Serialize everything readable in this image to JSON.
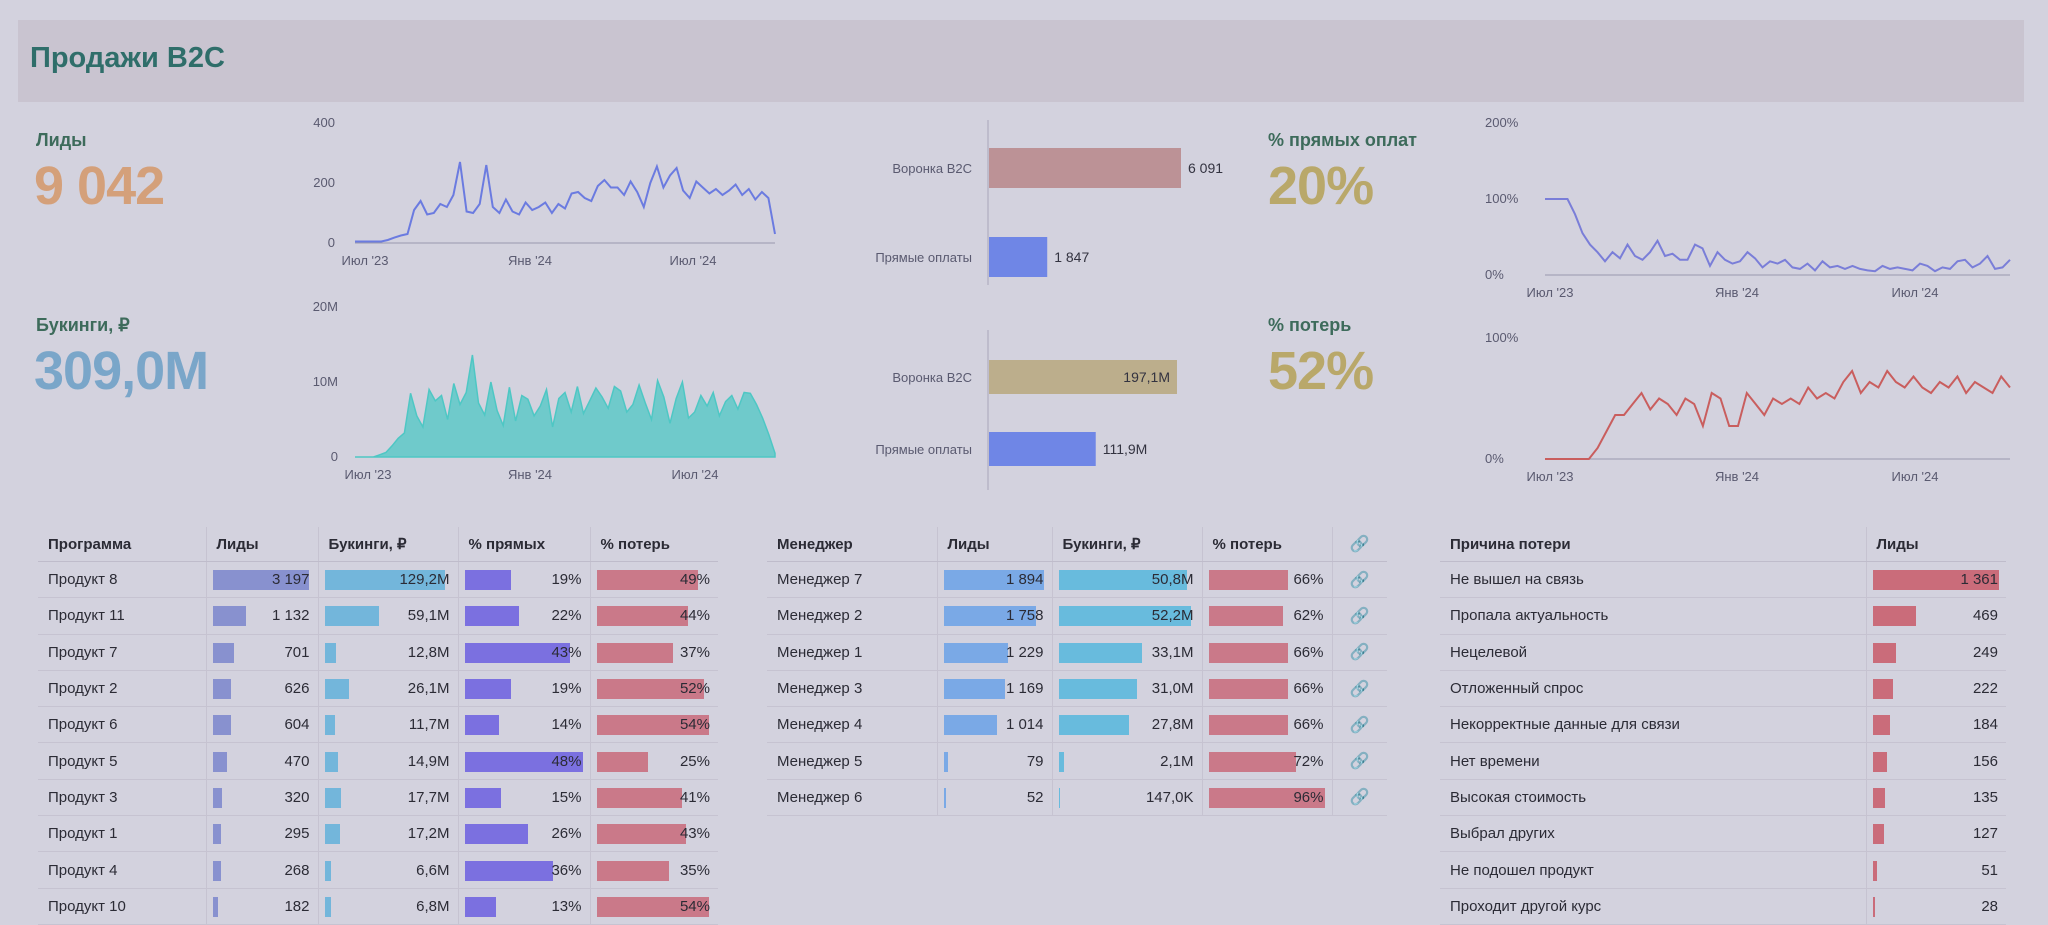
{
  "page": {
    "title": "Продажи B2C"
  },
  "kpis": {
    "leads": {
      "label": "Лиды",
      "value": "9 042"
    },
    "bookings": {
      "label": "Букинги, ₽",
      "value": "309,0M"
    },
    "direct_pct": {
      "label": "% прямых оплат",
      "value": "20%"
    },
    "loss_pct": {
      "label": "% потерь",
      "value": "52%"
    }
  },
  "chart_data": [
    {
      "type": "line",
      "x_ticks": [
        "Июл '23",
        "Янв '24",
        "Июл '24"
      ],
      "y_ticks": [
        "0",
        "200",
        "400"
      ],
      "ylim": [
        0,
        400
      ],
      "color": "#6b7be0",
      "series": [
        {
          "values": [
            5,
            5,
            5,
            5,
            5,
            10,
            18,
            25,
            30,
            110,
            140,
            95,
            100,
            130,
            120,
            160,
            270,
            105,
            100,
            130,
            260,
            120,
            100,
            145,
            105,
            95,
            135,
            110,
            120,
            135,
            100,
            130,
            115,
            165,
            170,
            150,
            140,
            190,
            210,
            185,
            185,
            160,
            205,
            170,
            120,
            200,
            255,
            185,
            225,
            250,
            175,
            150,
            205,
            185,
            165,
            180,
            160,
            175,
            195,
            160,
            180,
            145,
            170,
            150,
            30
          ]
        }
      ]
    },
    {
      "type": "area",
      "x_ticks": [
        "Июл '23",
        "Янв '24",
        "Июл '24"
      ],
      "y_ticks": [
        "0",
        "10M",
        "20M"
      ],
      "ylim": [
        0,
        20
      ],
      "color": "#4ec7c4",
      "series": [
        {
          "values": [
            0,
            0,
            0,
            0,
            0.3,
            0.6,
            1.5,
            2.5,
            3.2,
            8.5,
            5.5,
            4,
            9,
            7.5,
            8.2,
            5,
            9.8,
            7,
            8.6,
            13.6,
            7.2,
            5.6,
            10,
            6.2,
            4.2,
            9.3,
            4.8,
            8.2,
            7.7,
            5.5,
            6.8,
            9,
            4,
            7.8,
            8.6,
            6,
            9.4,
            5.8,
            7.5,
            9.2,
            8,
            6.5,
            9.4,
            8.8,
            6,
            7,
            9.6,
            7.2,
            5,
            10.2,
            8,
            4.5,
            7.8,
            10,
            5.2,
            6,
            8.2,
            6.8,
            8.6,
            5.5,
            7.4,
            8.2,
            6.4,
            8.6,
            8.5,
            7,
            5.2,
            3,
            0.5
          ]
        }
      ]
    },
    {
      "type": "bar",
      "orientation": "horizontal",
      "categories": [
        "Воронка B2C",
        "Прямые оплаты"
      ],
      "values": [
        6091,
        1847
      ],
      "labels": [
        "6 091",
        "1 847"
      ],
      "colors": [
        "#bc9296",
        "#6f86e6"
      ]
    },
    {
      "type": "bar",
      "orientation": "horizontal",
      "categories": [
        "Воронка B2C",
        "Прямые оплаты"
      ],
      "values": [
        197.1,
        111.9
      ],
      "labels": [
        "197,1M",
        "111,9M"
      ],
      "colors": [
        "#bcae8c",
        "#6f86e6"
      ]
    },
    {
      "type": "line",
      "x_ticks": [
        "Июл '23",
        "Янв '24",
        "Июл '24"
      ],
      "y_ticks": [
        "0%",
        "100%",
        "200%"
      ],
      "ylim": [
        0,
        200
      ],
      "color": "#7a7ed8",
      "series": [
        {
          "values": [
            100,
            100,
            100,
            100,
            80,
            55,
            40,
            30,
            18,
            30,
            22,
            40,
            25,
            20,
            30,
            45,
            25,
            28,
            20,
            20,
            40,
            35,
            12,
            30,
            20,
            15,
            18,
            30,
            22,
            10,
            18,
            15,
            20,
            10,
            8,
            15,
            6,
            18,
            10,
            12,
            8,
            12,
            8,
            6,
            5,
            12,
            8,
            10,
            8,
            6,
            15,
            12,
            5,
            10,
            8,
            18,
            20,
            10,
            15,
            25,
            8,
            10,
            20
          ]
        }
      ]
    },
    {
      "type": "line",
      "x_ticks": [
        "Июл '23",
        "Янв '24",
        "Июл '24"
      ],
      "y_ticks": [
        "0%",
        "100%"
      ],
      "ylim": [
        0,
        110
      ],
      "color": "#c95e5e",
      "series": [
        {
          "values": [
            0,
            0,
            0,
            0,
            0,
            0,
            10,
            25,
            40,
            40,
            50,
            60,
            45,
            55,
            50,
            40,
            55,
            50,
            30,
            60,
            55,
            30,
            30,
            60,
            50,
            40,
            55,
            50,
            55,
            50,
            65,
            55,
            60,
            55,
            70,
            80,
            60,
            70,
            65,
            80,
            70,
            65,
            75,
            65,
            60,
            70,
            65,
            75,
            60,
            70,
            65,
            60,
            75,
            65
          ]
        }
      ]
    }
  ],
  "programs_table": {
    "headers": [
      "Программа",
      "Лиды",
      "Букинги, ₽",
      "% прямых",
      "% потерь"
    ],
    "rows": [
      {
        "name": "Продукт 8",
        "leads": "3 197",
        "leads_v": 3197,
        "bookings": "129,2M",
        "bookings_v": 129.2,
        "direct": "19%",
        "direct_v": 19,
        "loss": "49%",
        "loss_v": 49
      },
      {
        "name": "Продукт 11",
        "leads": "1 132",
        "leads_v": 1132,
        "bookings": "59,1M",
        "bookings_v": 59.1,
        "direct": "22%",
        "direct_v": 22,
        "loss": "44%",
        "loss_v": 44
      },
      {
        "name": "Продукт 7",
        "leads": "701",
        "leads_v": 701,
        "bookings": "12,8M",
        "bookings_v": 12.8,
        "direct": "43%",
        "direct_v": 43,
        "loss": "37%",
        "loss_v": 37
      },
      {
        "name": "Продукт 2",
        "leads": "626",
        "leads_v": 626,
        "bookings": "26,1M",
        "bookings_v": 26.1,
        "direct": "19%",
        "direct_v": 19,
        "loss": "52%",
        "loss_v": 52
      },
      {
        "name": "Продукт 6",
        "leads": "604",
        "leads_v": 604,
        "bookings": "11,7M",
        "bookings_v": 11.7,
        "direct": "14%",
        "direct_v": 14,
        "loss": "54%",
        "loss_v": 54
      },
      {
        "name": "Продукт 5",
        "leads": "470",
        "leads_v": 470,
        "bookings": "14,9M",
        "bookings_v": 14.9,
        "direct": "48%",
        "direct_v": 48,
        "loss": "25%",
        "loss_v": 25
      },
      {
        "name": "Продукт 3",
        "leads": "320",
        "leads_v": 320,
        "bookings": "17,7M",
        "bookings_v": 17.7,
        "direct": "15%",
        "direct_v": 15,
        "loss": "41%",
        "loss_v": 41
      },
      {
        "name": "Продукт 1",
        "leads": "295",
        "leads_v": 295,
        "bookings": "17,2M",
        "bookings_v": 17.2,
        "direct": "26%",
        "direct_v": 26,
        "loss": "43%",
        "loss_v": 43
      },
      {
        "name": "Продукт 4",
        "leads": "268",
        "leads_v": 268,
        "bookings": "6,6M",
        "bookings_v": 6.6,
        "direct": "36%",
        "direct_v": 36,
        "loss": "35%",
        "loss_v": 35
      },
      {
        "name": "Продукт 10",
        "leads": "182",
        "leads_v": 182,
        "bookings": "6,8M",
        "bookings_v": 6.8,
        "direct": "13%",
        "direct_v": 13,
        "loss": "54%",
        "loss_v": 54
      }
    ]
  },
  "managers_table": {
    "headers": [
      "Менеджер",
      "Лиды",
      "Букинги, ₽",
      "% потерь"
    ],
    "rows": [
      {
        "name": "Менеджер 7",
        "leads": "1 894",
        "leads_v": 1894,
        "bookings": "50,8M",
        "bookings_v": 50.8,
        "loss": "66%",
        "loss_v": 66
      },
      {
        "name": "Менеджер 2",
        "leads": "1 758",
        "leads_v": 1758,
        "bookings": "52,2M",
        "bookings_v": 52.2,
        "loss": "62%",
        "loss_v": 62
      },
      {
        "name": "Менеджер 1",
        "leads": "1 229",
        "leads_v": 1229,
        "bookings": "33,1M",
        "bookings_v": 33.1,
        "loss": "66%",
        "loss_v": 66
      },
      {
        "name": "Менеджер 3",
        "leads": "1 169",
        "leads_v": 1169,
        "bookings": "31,0M",
        "bookings_v": 31.0,
        "loss": "66%",
        "loss_v": 66
      },
      {
        "name": "Менеджер 4",
        "leads": "1 014",
        "leads_v": 1014,
        "bookings": "27,8M",
        "bookings_v": 27.8,
        "loss": "66%",
        "loss_v": 66
      },
      {
        "name": "Менеджер 5",
        "leads": "79",
        "leads_v": 79,
        "bookings": "2,1M",
        "bookings_v": 2.1,
        "loss": "72%",
        "loss_v": 72
      },
      {
        "name": "Менеджер 6",
        "leads": "52",
        "leads_v": 52,
        "bookings": "147,0K",
        "bookings_v": 0.147,
        "loss": "96%",
        "loss_v": 96
      }
    ]
  },
  "reasons_table": {
    "headers": [
      "Причина потери",
      "Лиды"
    ],
    "rows": [
      {
        "name": "Не вышел на связь",
        "leads": "1 361",
        "leads_v": 1361
      },
      {
        "name": "Пропала актуальность",
        "leads": "469",
        "leads_v": 469
      },
      {
        "name": "Нецелевой",
        "leads": "249",
        "leads_v": 249
      },
      {
        "name": "Отложенный спрос",
        "leads": "222",
        "leads_v": 222
      },
      {
        "name": "Некорректные данные для связи",
        "leads": "184",
        "leads_v": 184
      },
      {
        "name": "Нет времени",
        "leads": "156",
        "leads_v": 156
      },
      {
        "name": "Высокая стоимость",
        "leads": "135",
        "leads_v": 135
      },
      {
        "name": "Выбрал других",
        "leads": "127",
        "leads_v": 127
      },
      {
        "name": "Не подошел продукт",
        "leads": "51",
        "leads_v": 51
      },
      {
        "name": "Проходит другой курс",
        "leads": "28",
        "leads_v": 28
      }
    ]
  },
  "colors": {
    "leads_bar": "#7a86cc",
    "bookings_bar": "#62b1da",
    "direct_bar": "#6b5fe0",
    "loss_bar": "#c86a7a",
    "mgr_leads_bar": "#6aa2e8",
    "mgr_bookings_bar": "#55b7dd",
    "reason_bar": "#c85a68"
  },
  "icons": {
    "link": "link-icon"
  }
}
